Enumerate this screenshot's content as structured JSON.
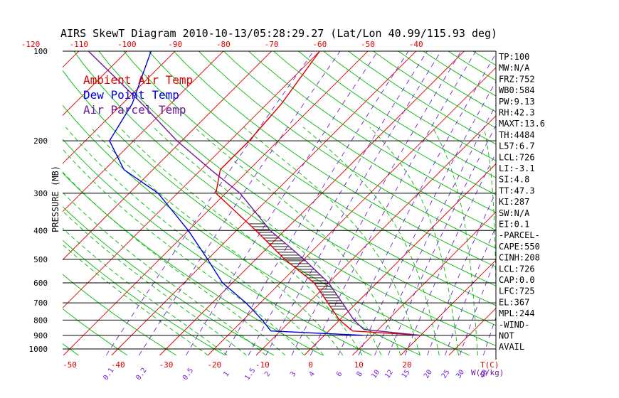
{
  "chart_data": {
    "type": "skewt",
    "title": "AIRS SkewT Diagram 2010-10-13/05:28:29.27 (Lat/Lon 40.99/115.93 deg)",
    "ylabel": "PRESSURE (MB)",
    "xlabel": "T(C)",
    "mixing_label": "W(g/kg)",
    "pressure_range": [
      1000,
      100
    ],
    "bottom_temp_range": [
      -50,
      20
    ],
    "pressure_ticks": [
      100,
      200,
      300,
      400,
      500,
      600,
      700,
      800,
      900,
      1000
    ],
    "bottom_temp_ticks": [
      -50,
      -40,
      -30,
      -20,
      -10,
      0,
      10,
      20
    ],
    "top_temp_ticks": [
      -120,
      -110,
      -100,
      -90,
      -80,
      -70,
      -60,
      -50,
      -40
    ],
    "mixing_ratio_ticks": [
      "0.1",
      "0.2",
      "0.5",
      "1",
      "1.5",
      "2",
      "3",
      "4",
      "6",
      "8",
      "10",
      "12",
      "15",
      "20",
      "25",
      "30",
      "40"
    ],
    "legend": [
      {
        "label": "Ambient Air Temp",
        "color": "#dd0000"
      },
      {
        "label": "Dew Point Temp",
        "color": "#0000dd"
      },
      {
        "label": "Air Parcel Temp",
        "color": "#6a1b9a"
      }
    ],
    "series": [
      {
        "name": "Ambient Air Temp",
        "color": "#dd0000",
        "points": [
          [
            900,
            20
          ],
          [
            870,
            5
          ],
          [
            800,
            0
          ],
          [
            700,
            -6
          ],
          [
            600,
            -13
          ],
          [
            500,
            -24
          ],
          [
            400,
            -36
          ],
          [
            300,
            -52
          ],
          [
            250,
            -56
          ],
          [
            200,
            -56
          ],
          [
            150,
            -57
          ],
          [
            100,
            -60
          ]
        ]
      },
      {
        "name": "Dew Point Temp",
        "color": "#0000dd",
        "points": [
          [
            900,
            8
          ],
          [
            870,
            -12
          ],
          [
            800,
            -16
          ],
          [
            700,
            -23
          ],
          [
            600,
            -32
          ],
          [
            500,
            -40
          ],
          [
            400,
            -50
          ],
          [
            300,
            -64
          ],
          [
            250,
            -76
          ],
          [
            200,
            -85
          ],
          [
            150,
            -88
          ],
          [
            100,
            -95
          ]
        ]
      },
      {
        "name": "Air Parcel Temp",
        "color": "#6a1b9a",
        "points": [
          [
            900,
            20
          ],
          [
            860,
            7
          ],
          [
            800,
            3
          ],
          [
            700,
            -3
          ],
          [
            600,
            -10
          ],
          [
            500,
            -20
          ],
          [
            400,
            -33
          ],
          [
            300,
            -47
          ],
          [
            250,
            -58
          ],
          [
            200,
            -71
          ],
          [
            150,
            -86
          ],
          [
            100,
            -108
          ]
        ]
      }
    ],
    "cape_region": {
      "p_top": 380,
      "p_bottom": 740
    },
    "indices": [
      "TP:100",
      "MW:N/A",
      "FRZ:752",
      "WB0:584",
      "PW:9.13",
      "RH:42.3",
      "MAXT:13.6",
      "TH:4484",
      "L57:6.7",
      "LCL:726",
      "LI:-3.1",
      "SI:4.8",
      "TT:47.3",
      "KI:287",
      "SW:N/A",
      "EI:0.1",
      "-PARCEL-",
      "CAPE:550",
      "CINH:208",
      "LCL:726",
      "CAP:0.0",
      "LFC:725",
      "EL:367",
      "MPL:244",
      "-WIND-",
      " NOT",
      "AVAIL"
    ],
    "colors": {
      "isotherm": "#dd0000",
      "dry_adiabat": "#00bb00",
      "moist_adiabat": "#00bb00",
      "mixing_ratio": "#7a1fd6",
      "isobar": "#000000"
    }
  }
}
